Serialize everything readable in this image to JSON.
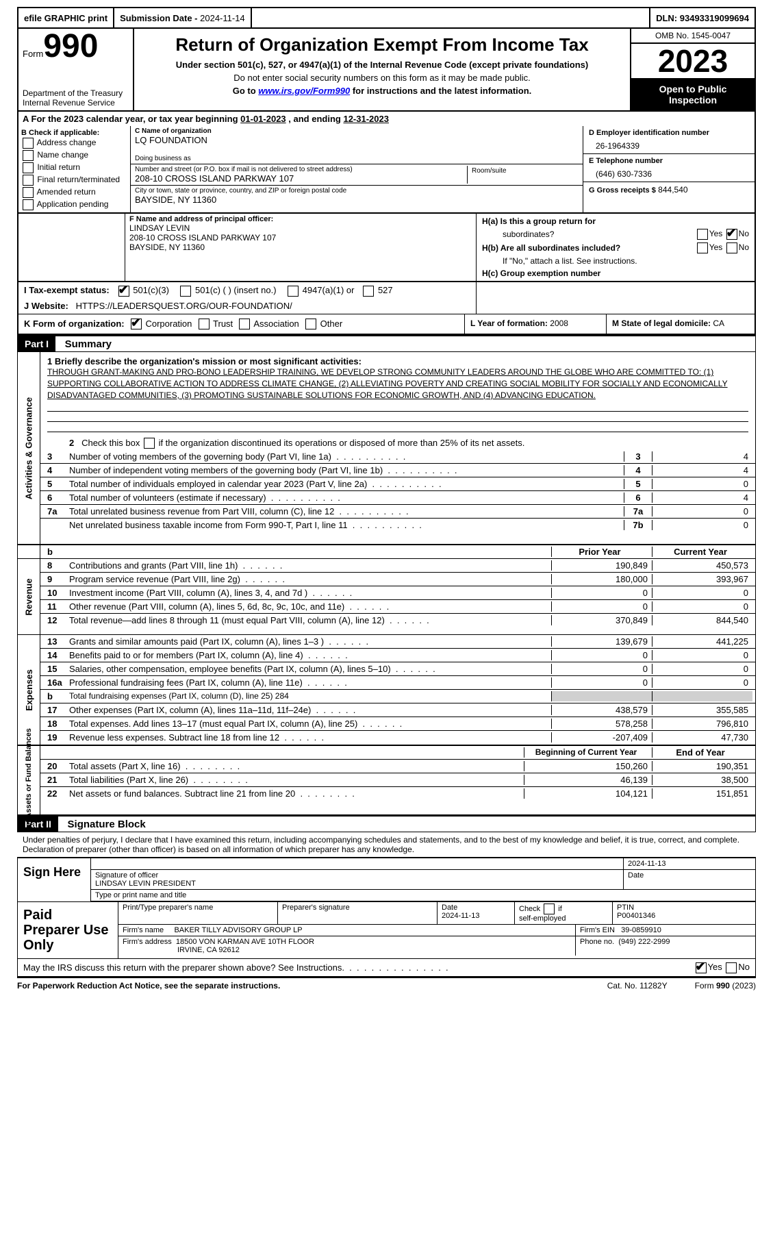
{
  "top_bar": {
    "efile": "efile GRAPHIC print",
    "submission_label": "Submission Date -",
    "submission_date": "2024-11-14",
    "dln_label": "DLN:",
    "dln": "93493319099694"
  },
  "header": {
    "form_label": "Form",
    "form_number": "990",
    "dept": "Department of the Treasury",
    "irs": "Internal Revenue Service",
    "title": "Return of Organization Exempt From Income Tax",
    "subtitle": "Under section 501(c), 527, or 4947(a)(1) of the Internal Revenue Code (except private foundations)",
    "ssn_line": "Do not enter social security numbers on this form as it may be made public.",
    "goto_prefix": "Go to",
    "goto_url": "www.irs.gov/Form990",
    "goto_suffix": "for instructions and the latest information.",
    "omb": "OMB No. 1545-0047",
    "year": "2023",
    "open_line1": "Open to Public",
    "open_line2": "Inspection"
  },
  "line_a": {
    "text_prefix": "A For the 2023 calendar year, or tax year beginning",
    "begin": "01-01-2023",
    "mid": ", and ending",
    "end": "12-31-2023"
  },
  "section_b": {
    "label": "B Check if applicable:",
    "items": [
      "Address change",
      "Name change",
      "Initial return",
      "Final return/terminated",
      "Amended return",
      "Application pending"
    ]
  },
  "section_c": {
    "name_label": "C Name of organization",
    "name": "LQ FOUNDATION",
    "dba_label": "Doing business as",
    "dba": "",
    "street_label": "Number and street (or P.O. box if mail is not delivered to street address)",
    "street": "208-10 CROSS ISLAND PARKWAY 107",
    "room_label": "Room/suite",
    "room": "",
    "city_label": "City or town, state or province, country, and ZIP or foreign postal code",
    "city": "BAYSIDE, NY  11360"
  },
  "section_d": {
    "ein_label": "D Employer identification number",
    "ein": "26-1964339",
    "phone_label": "E Telephone number",
    "phone": "(646) 630-7336",
    "gross_label": "G Gross receipts $",
    "gross": "844,540"
  },
  "section_f": {
    "label": "F  Name and address of principal officer:",
    "name": "LINDSAY LEVIN",
    "addr1": "208-10 CROSS ISLAND PARKWAY 107",
    "addr2": "BAYSIDE, NY  11360"
  },
  "section_h": {
    "ha_label": "H(a)  Is this a group return for",
    "ha_sub": "subordinates?",
    "ha_yes": false,
    "ha_no": true,
    "hb_label": "H(b)  Are all subordinates included?",
    "hb_note": "If \"No,\" attach a list. See instructions.",
    "hc_label": "H(c)  Group exemption number"
  },
  "row_i": {
    "label": "I    Tax-exempt status:",
    "c3_checked": true,
    "opts": [
      "501(c)(3)",
      "501(c) (  ) (insert no.)",
      "4947(a)(1) or",
      "527"
    ]
  },
  "row_j": {
    "label": "J   Website:",
    "url": "HTTPS://LEADERSQUEST.ORG/OUR-FOUNDATION/"
  },
  "row_k": {
    "label": "K Form of organization:",
    "corp_checked": true,
    "opts": [
      "Corporation",
      "Trust",
      "Association",
      "Other"
    ],
    "l_label": "L Year of formation:",
    "l_val": "2008",
    "m_label": "M State of legal domicile:",
    "m_val": "CA"
  },
  "part1_label": "Part I",
  "part1_title": "Summary",
  "summary": {
    "line1_label": "1   Briefly describe the organization's mission or most significant activities:",
    "line1_text": "THROUGH GRANT-MAKING AND PRO-BONO LEADERSHIP TRAINING, WE DEVELOP STRONG COMMUNITY LEADERS AROUND THE GLOBE WHO ARE COMMITTED TO: (1) SUPPORTING COLLABORATIVE ACTION TO ADDRESS CLIMATE CHANGE, (2) ALLEVIATING POVERTY AND CREATING SOCIAL MOBILITY FOR SOCIALLY AND ECONOMICALLY DISADVANTAGED COMMUNITIES, (3) PROMOTING SUSTAINABLE SOLUTIONS FOR ECONOMIC GROWTH, AND (4) ADVANCING EDUCATION.",
    "line2_text": "2    Check this box      if the organization discontinued its operations or disposed of more than 25% of its net assets.",
    "ag_rows": [
      {
        "n": "3",
        "t": "Number of voting members of the governing body (Part VI, line 1a)",
        "box": "3",
        "v": "4"
      },
      {
        "n": "4",
        "t": "Number of independent voting members of the governing body (Part VI, line 1b)",
        "box": "4",
        "v": "4"
      },
      {
        "n": "5",
        "t": "Total number of individuals employed in calendar year 2023 (Part V, line 2a)",
        "box": "5",
        "v": "0"
      },
      {
        "n": "6",
        "t": "Total number of volunteers (estimate if necessary)",
        "box": "6",
        "v": "4"
      },
      {
        "n": "7a",
        "t": "Total unrelated business revenue from Part VIII, column (C), line 12",
        "box": "7a",
        "v": "0"
      },
      {
        "n": "",
        "t": "Net unrelated business taxable income from Form 990-T, Part I, line 11",
        "box": "7b",
        "v": "0"
      }
    ],
    "col_headers": {
      "b": "b",
      "prior": "Prior Year",
      "current": "Current Year"
    },
    "revenue_rows": [
      {
        "n": "8",
        "t": "Contributions and grants (Part VIII, line 1h)",
        "p": "190,849",
        "c": "450,573"
      },
      {
        "n": "9",
        "t": "Program service revenue (Part VIII, line 2g)",
        "p": "180,000",
        "c": "393,967"
      },
      {
        "n": "10",
        "t": "Investment income (Part VIII, column (A), lines 3, 4, and 7d )",
        "p": "0",
        "c": "0"
      },
      {
        "n": "11",
        "t": "Other revenue (Part VIII, column (A), lines 5, 6d, 8c, 9c, 10c, and 11e)",
        "p": "0",
        "c": "0"
      },
      {
        "n": "12",
        "t": "Total revenue—add lines 8 through 11 (must equal Part VIII, column (A), line 12)",
        "p": "370,849",
        "c": "844,540"
      }
    ],
    "expense_rows": [
      {
        "n": "13",
        "t": "Grants and similar amounts paid (Part IX, column (A), lines 1–3 )",
        "p": "139,679",
        "c": "441,225"
      },
      {
        "n": "14",
        "t": "Benefits paid to or for members (Part IX, column (A), line 4)",
        "p": "0",
        "c": "0"
      },
      {
        "n": "15",
        "t": "Salaries, other compensation, employee benefits (Part IX, column (A), lines 5–10)",
        "p": "0",
        "c": "0"
      },
      {
        "n": "16a",
        "t": "Professional fundraising fees (Part IX, column (A), line 11e)",
        "p": "0",
        "c": "0"
      }
    ],
    "line16b": {
      "n": "b",
      "t": "Total fundraising expenses (Part IX, column (D), line 25) 284"
    },
    "expense_rows2": [
      {
        "n": "17",
        "t": "Other expenses (Part IX, column (A), lines 11a–11d, 11f–24e)",
        "p": "438,579",
        "c": "355,585"
      },
      {
        "n": "18",
        "t": "Total expenses. Add lines 13–17 (must equal Part IX, column (A), line 25)",
        "p": "578,258",
        "c": "796,810"
      },
      {
        "n": "19",
        "t": "Revenue less expenses. Subtract line 18 from line 12",
        "p": "-207,409",
        "c": "47,730"
      }
    ],
    "na_headers": {
      "beg": "Beginning of Current Year",
      "end": "End of Year"
    },
    "na_rows": [
      {
        "n": "20",
        "t": "Total assets (Part X, line 16)",
        "p": "150,260",
        "c": "190,351"
      },
      {
        "n": "21",
        "t": "Total liabilities (Part X, line 26)",
        "p": "46,139",
        "c": "38,500"
      },
      {
        "n": "22",
        "t": "Net assets or fund balances. Subtract line 21 from line 20",
        "p": "104,121",
        "c": "151,851"
      }
    ],
    "vtab_labels": {
      "ag": "Activities & Governance",
      "rev": "Revenue",
      "exp": "Expenses",
      "na": "Net Assets or Fund Balances"
    }
  },
  "part2_label": "Part II",
  "part2_title": "Signature Block",
  "sig_para": "Under penalties of perjury, I declare that I have examined this return, including accompanying schedules and statements, and to the best of my knowledge and belief, it is true, correct, and complete. Declaration of preparer (other than officer) is based on all information of which preparer has any knowledge.",
  "sign_here": {
    "label": "Sign Here",
    "sig_date": "2024-11-13",
    "sig_of_officer_label": "Signature of officer",
    "officer_name": "LINDSAY LEVIN  PRESIDENT",
    "date_label": "Date",
    "type_label": "Type or print name and title"
  },
  "paid_prep": {
    "label": "Paid Preparer Use Only",
    "print_name_label": "Print/Type preparer's name",
    "prep_sig_label": "Preparer's signature",
    "date_label": "Date",
    "date": "2024-11-13",
    "self_emp_label": "Check       if self-employed",
    "ptin_label": "PTIN",
    "ptin": "P00401346",
    "firm_name_label": "Firm's name",
    "firm_name": "BAKER TILLY ADVISORY GROUP LP",
    "firm_ein_label": "Firm's EIN",
    "firm_ein": "39-0859910",
    "firm_addr_label": "Firm's address",
    "firm_addr1": "18500 VON KARMAN AVE 10TH FLOOR",
    "firm_addr2": "IRVINE, CA  92612",
    "phone_label": "Phone no.",
    "phone": "(949) 222-2999"
  },
  "irs_discuss": {
    "text": "May the IRS discuss this return with the preparer shown above? See Instructions.",
    "yes_checked": true
  },
  "footer": {
    "fpn": "For Paperwork Reduction Act Notice, see the separate instructions.",
    "cat": "Cat. No. 11282Y",
    "form": "Form 990 (2023)"
  }
}
